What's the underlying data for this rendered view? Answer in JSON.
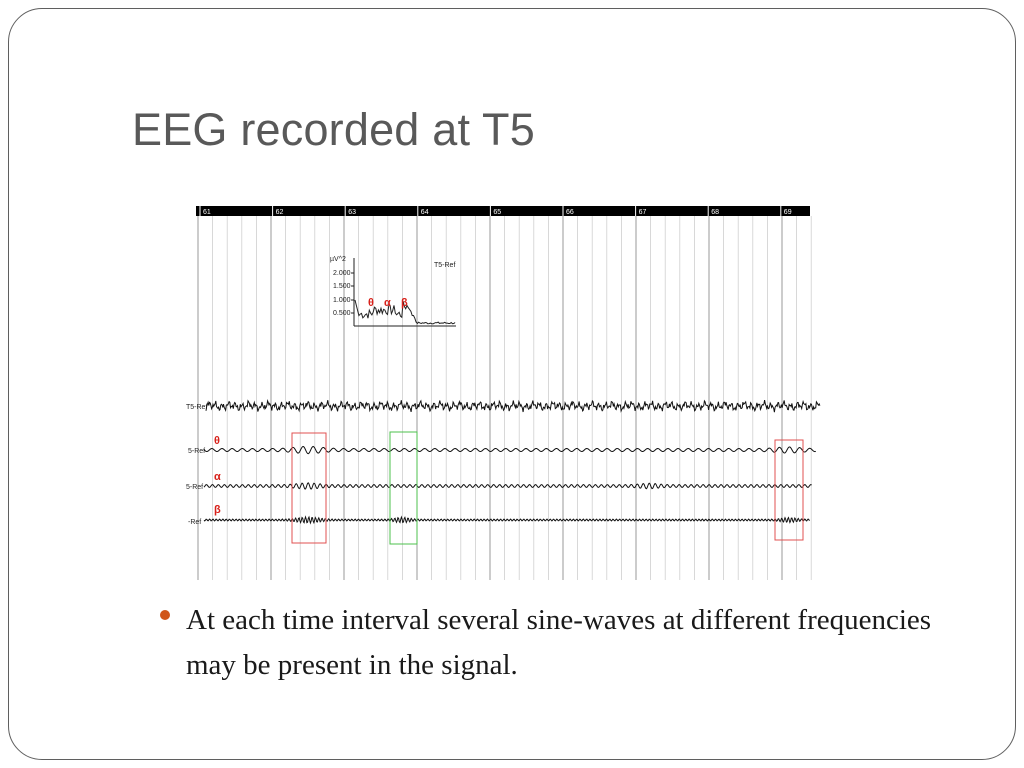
{
  "slide": {
    "title": "EEG recorded at T5",
    "bullet": "At each time interval several sine-waves at different frequencies may be present in the signal."
  },
  "eeg_figure": {
    "time_ruler": [
      "61",
      "62",
      "63",
      "64",
      "65",
      "66",
      "67",
      "68",
      "69"
    ],
    "spectrum_inset": {
      "unit": "µV^2",
      "y_ticks": [
        "2.000",
        "1.500",
        "1.000",
        "0.500"
      ],
      "channel": "T5-Ref",
      "band_labels": [
        "θ",
        "α",
        "β"
      ]
    },
    "channels": [
      {
        "label": "T5-Ref",
        "band": ""
      },
      {
        "label": "5-Ref",
        "band": "θ"
      },
      {
        "label": "5-Ref",
        "band": "α"
      },
      {
        "label": "-Ref",
        "band": "β"
      }
    ],
    "colors": {
      "band_label": "#d8211a",
      "red_box": "#e05050",
      "green_box": "#4cc24c",
      "bullet": "#d0561a",
      "title": "#595959"
    }
  }
}
